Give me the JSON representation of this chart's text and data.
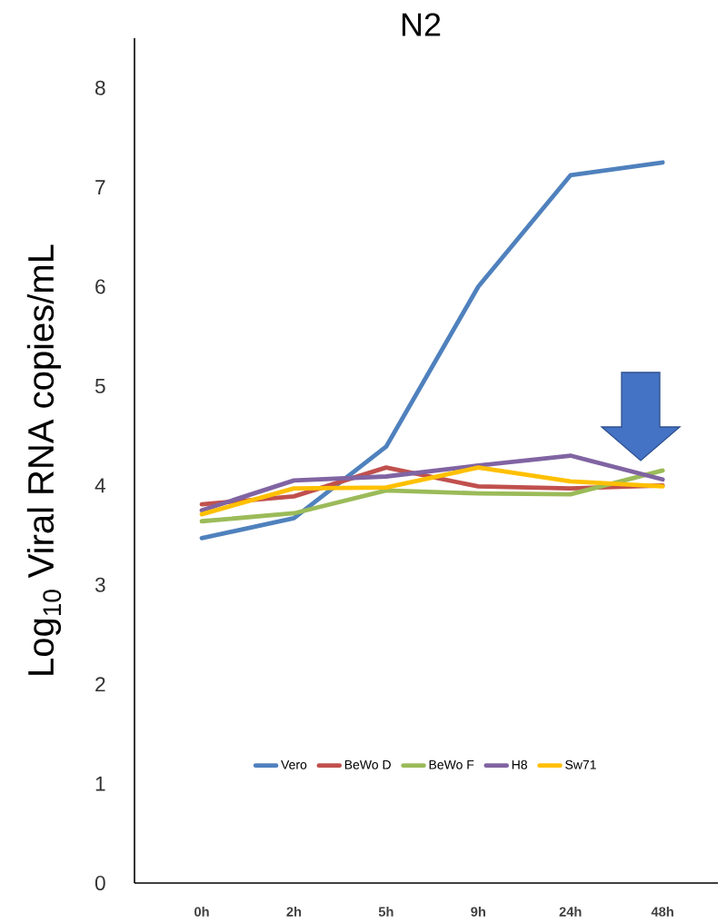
{
  "chart_data": {
    "type": "line",
    "title": "N2",
    "ylabel": "Log$_{10}$ Viral RNA copies/mL",
    "categories": [
      "0h",
      "2h",
      "5h",
      "9h",
      "24h",
      "48h"
    ],
    "series": [
      {
        "name": "Vero",
        "color": "#4f81bd",
        "values": [
          3.47,
          3.67,
          4.39,
          6.0,
          7.12,
          7.25
        ]
      },
      {
        "name": "BeWo D",
        "color": "#c0504d",
        "values": [
          3.81,
          3.89,
          4.18,
          3.99,
          3.97,
          4.0
        ]
      },
      {
        "name": "BeWo F",
        "color": "#9bbb59",
        "values": [
          3.64,
          3.72,
          3.95,
          3.92,
          3.91,
          4.15
        ]
      },
      {
        "name": "H8",
        "color": "#8064a2",
        "values": [
          3.75,
          4.05,
          4.09,
          4.2,
          4.3,
          4.06
        ]
      },
      {
        "name": "Sw71",
        "color": "#ffc000",
        "values": [
          3.71,
          3.97,
          3.98,
          4.18,
          4.04,
          3.99
        ]
      }
    ],
    "ylim": [
      0,
      8.5
    ],
    "yticks": [
      0,
      1,
      2,
      3,
      4,
      5,
      6,
      7,
      8
    ],
    "legend": "bottom",
    "line_style": "solid"
  }
}
